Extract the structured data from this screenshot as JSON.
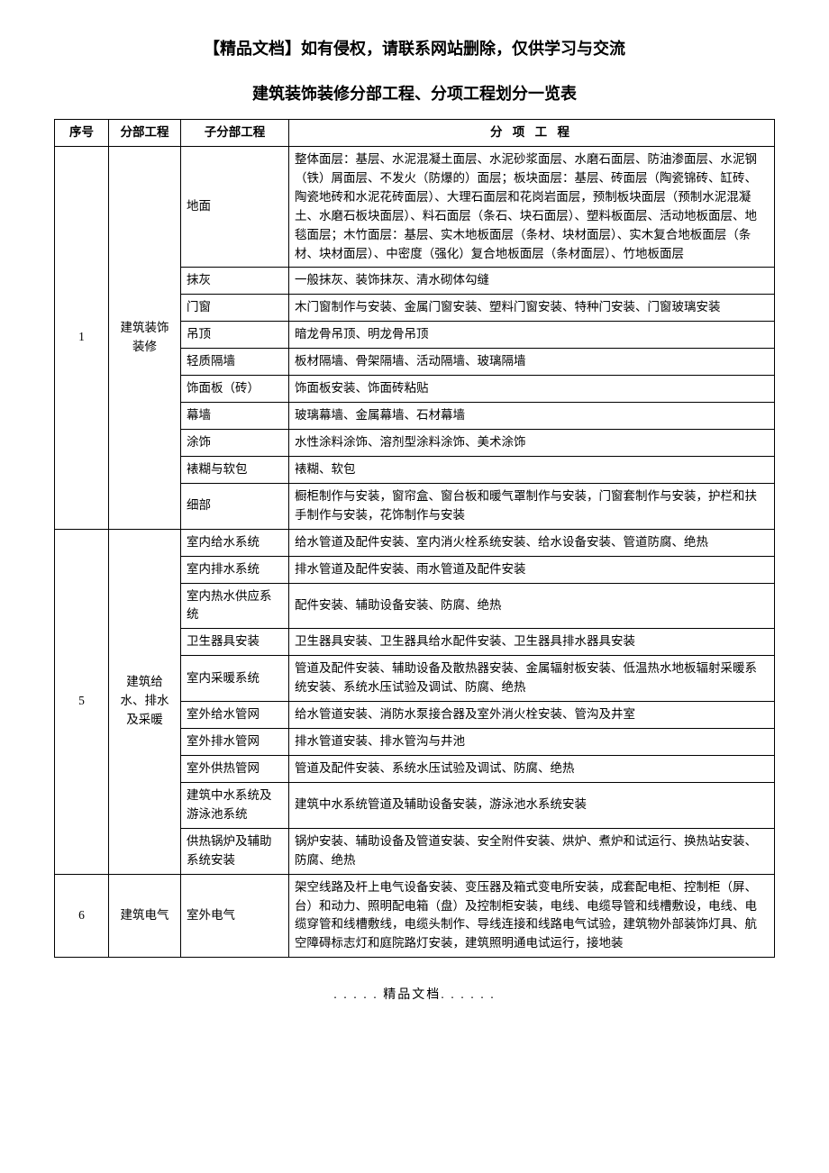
{
  "header_note": "【精品文档】如有侵权，请联系网站删除，仅供学习与交流",
  "title": "建筑装饰装修分部工程、分项工程划分一览表",
  "footer": ". . . . . 精品文档. . . . . .",
  "columns": {
    "idx": "序号",
    "division": "分部工程",
    "subdivision": "子分部工程",
    "item": "分 项 工 程"
  },
  "col_widths": {
    "idx": 60,
    "division": 80,
    "subdivision": 120
  },
  "font": {
    "body_size": 14,
    "title_size": 18,
    "cell_size": 13.5,
    "line_height": 1.55
  },
  "colors": {
    "text": "#000000",
    "border": "#000000",
    "background": "#ffffff"
  },
  "groups": [
    {
      "idx": "1",
      "division": "建筑装饰装修",
      "rows": [
        {
          "sub": "地面",
          "item": "整体面层：基层、水泥混凝土面层、水泥砂浆面层、水磨石面层、防油渗面层、水泥钢（铁）屑面层、不发火（防爆的）面层；板块面层：基层、砖面层（陶瓷锦砖、缸砖、陶瓷地砖和水泥花砖面层）、大理石面层和花岗岩面层，预制板块面层（预制水泥混凝土、水磨石板块面层）、料石面层（条石、块石面层）、塑料板面层、活动地板面层、地毯面层；木竹面层：基层、实木地板面层（条材、块材面层）、实木复合地板面层（条材、块材面层）、中密度（强化）复合地板面层（条材面层）、竹地板面层"
        },
        {
          "sub": "抹灰",
          "item": "一般抹灰、装饰抹灰、清水砌体勾缝"
        },
        {
          "sub": "门窗",
          "item": "木门窗制作与安装、金属门窗安装、塑料门窗安装、特种门安装、门窗玻璃安装"
        },
        {
          "sub": "吊顶",
          "item": "暗龙骨吊顶、明龙骨吊顶"
        },
        {
          "sub": "轻质隔墙",
          "item": "板材隔墙、骨架隔墙、活动隔墙、玻璃隔墙"
        },
        {
          "sub": "饰面板（砖）",
          "item": "饰面板安装、饰面砖粘贴"
        },
        {
          "sub": "幕墙",
          "item": "玻璃幕墙、金属幕墙、石材幕墙"
        },
        {
          "sub": "涂饰",
          "item": "水性涂料涂饰、溶剂型涂料涂饰、美术涂饰"
        },
        {
          "sub": "裱糊与软包",
          "item": "裱糊、软包"
        },
        {
          "sub": "细部",
          "item": "橱柜制作与安装，窗帘盒、窗台板和暖气罩制作与安装，门窗套制作与安装，护栏和扶手制作与安装，花饰制作与安装"
        }
      ]
    },
    {
      "idx": "5",
      "division": "建筑给水、排水及采暖",
      "rows": [
        {
          "sub": "室内给水系统",
          "item": "给水管道及配件安装、室内消火栓系统安装、给水设备安装、管道防腐、绝热"
        },
        {
          "sub": "室内排水系统",
          "item": "排水管道及配件安装、雨水管道及配件安装"
        },
        {
          "sub": "室内热水供应系统",
          "item": "配件安装、辅助设备安装、防腐、绝热"
        },
        {
          "sub": "卫生器具安装",
          "item": "卫生器具安装、卫生器具给水配件安装、卫生器具排水器具安装"
        },
        {
          "sub": "室内采暖系统",
          "item": "管道及配件安装、辅助设备及散热器安装、金属辐射板安装、低温热水地板辐射采暖系统安装、系统水压试验及调试、防腐、绝热"
        },
        {
          "sub": "室外给水管网",
          "item": "给水管道安装、消防水泵接合器及室外消火栓安装、管沟及井室"
        },
        {
          "sub": "室外排水管网",
          "item": "排水管道安装、排水管沟与井池"
        },
        {
          "sub": "室外供热管网",
          "item": "管道及配件安装、系统水压试验及调试、防腐、绝热"
        },
        {
          "sub": "建筑中水系统及游泳池系统",
          "item": "建筑中水系统管道及辅助设备安装，游泳池水系统安装"
        },
        {
          "sub": "供热锅炉及辅助系统安装",
          "item": "锅炉安装、辅助设备及管道安装、安全附件安装、烘炉、煮炉和试运行、换热站安装、防腐、绝热"
        }
      ]
    },
    {
      "idx": "6",
      "division": "建筑电气",
      "rows": [
        {
          "sub": "室外电气",
          "item": "架空线路及杆上电气设备安装、变压器及箱式变电所安装，成套配电柜、控制柜（屏、台）和动力、照明配电箱（盘）及控制柜安装，电线、电缆导管和线槽敷设，电线、电缆穿管和线槽敷线，电缆头制作、导线连接和线路电气试验，建筑物外部装饰灯具、航空障碍标志灯和庭院路灯安装，建筑照明通电试运行，接地装"
        }
      ]
    }
  ]
}
